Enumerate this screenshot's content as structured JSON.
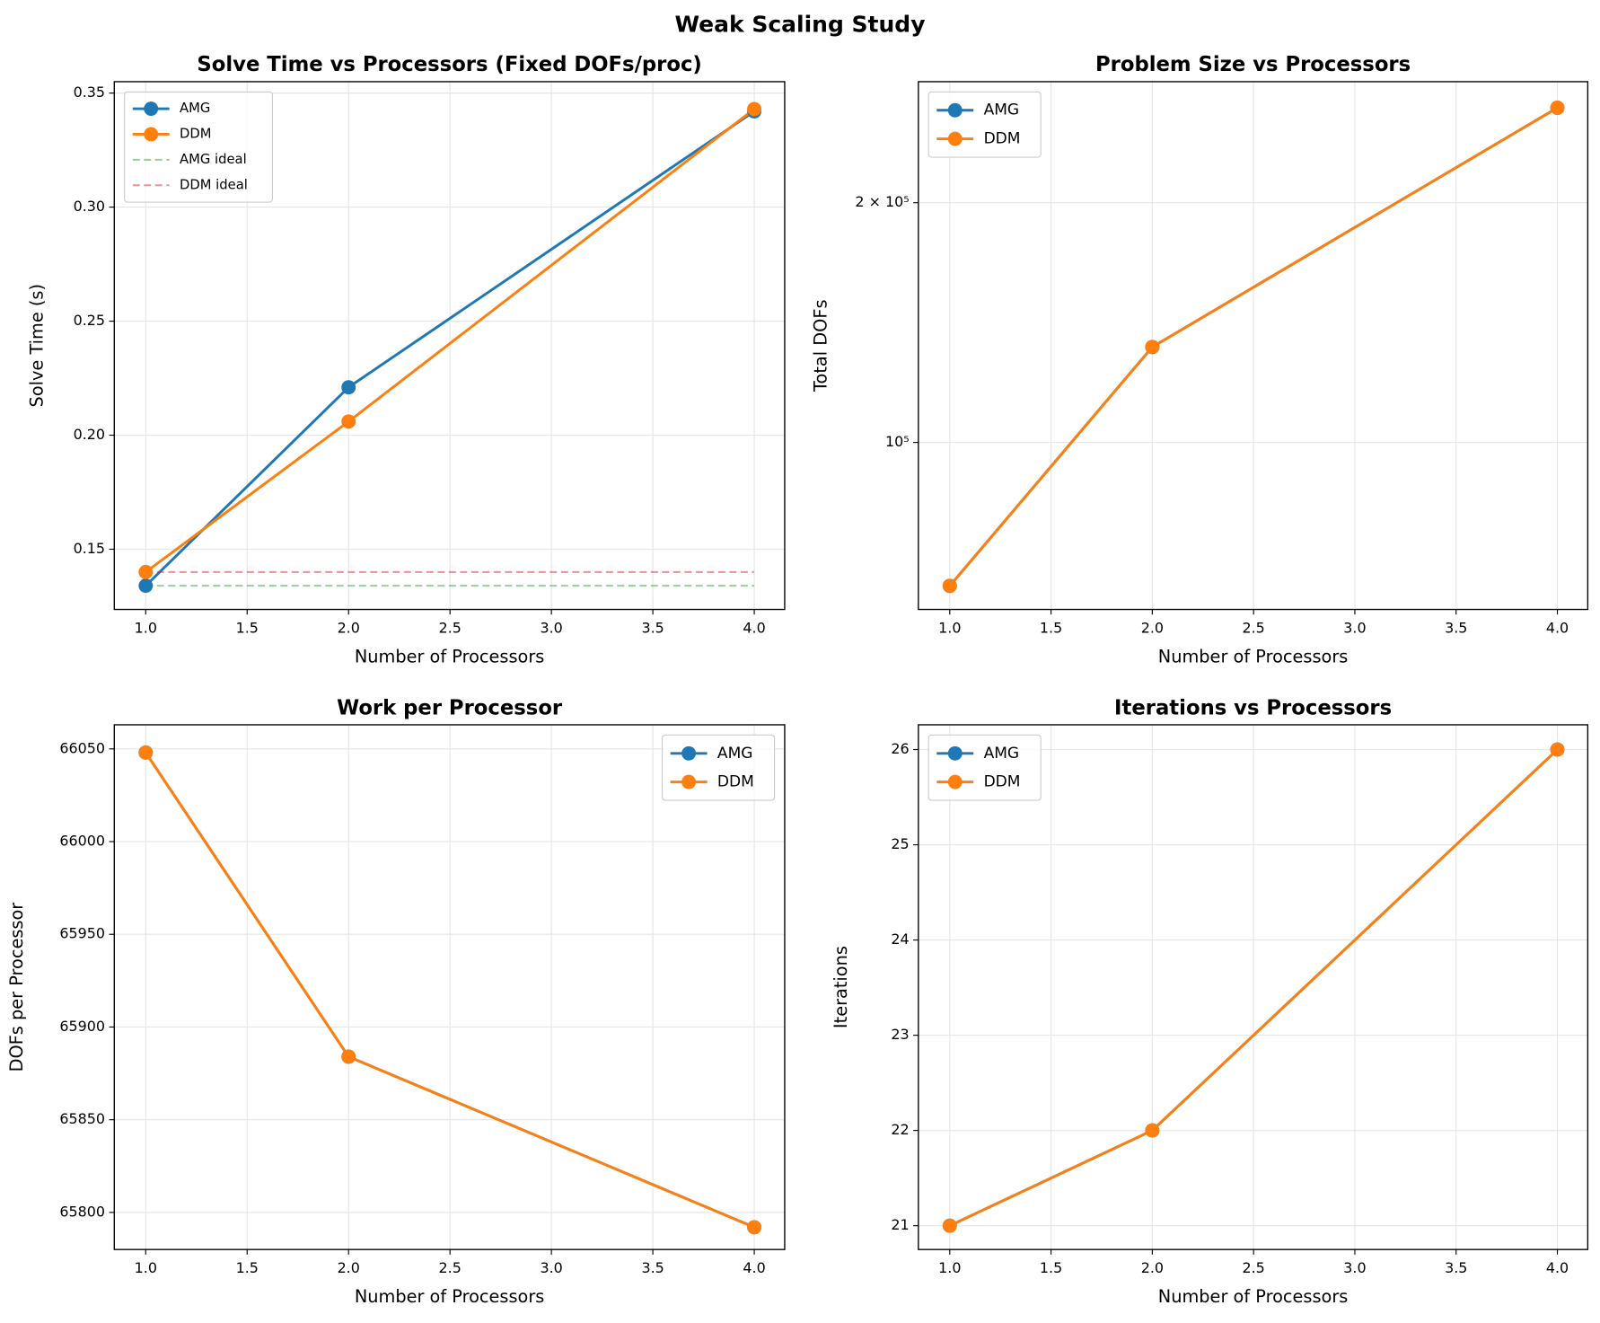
{
  "title": "Weak Scaling Study",
  "chart_data": [
    {
      "type": "line",
      "title": "Solve Time vs Processors (Fixed DOFs/proc)",
      "xlabel": "Number of Processors",
      "ylabel": "Solve Time (s)",
      "x": [
        1,
        2,
        4
      ],
      "series": [
        {
          "name": "AMG",
          "color": "#1f77b4",
          "values": [
            0.134,
            0.221,
            0.342
          ]
        },
        {
          "name": "DDM",
          "color": "#ff7f0e",
          "values": [
            0.14,
            0.206,
            0.343
          ]
        },
        {
          "name": "AMG ideal",
          "color": "#2ca02c",
          "linestyle": "dashed",
          "values": [
            0.134,
            0.134,
            0.134
          ]
        },
        {
          "name": "DDM ideal",
          "color": "#d62728",
          "linestyle": "dashed",
          "values": [
            0.14,
            0.14,
            0.14
          ]
        }
      ],
      "xlim": [
        0.845,
        4.15
      ],
      "ylim": [
        0.1236,
        0.355
      ],
      "xticks": [
        {
          "value": 1,
          "label": "1.0"
        },
        {
          "value": 1.5,
          "label": "1.5"
        },
        {
          "value": 2,
          "label": "2.0"
        },
        {
          "value": 2.5,
          "label": "2.5"
        },
        {
          "value": 3,
          "label": "3.0"
        },
        {
          "value": 3.5,
          "label": "3.5"
        },
        {
          "value": 4,
          "label": "4.0"
        }
      ],
      "yticks": [
        0.15,
        {
          "value": 0.2,
          "label": "0.20"
        },
        0.25,
        {
          "value": 0.3,
          "label": "0.30"
        },
        0.35
      ],
      "grid": true,
      "legend": "upper left"
    },
    {
      "type": "line",
      "title": "Problem Size vs Processors",
      "xlabel": "Number of Processors",
      "ylabel": "Total DOFs",
      "x": [
        1,
        2,
        4
      ],
      "series": [
        {
          "name": "AMG",
          "color": "#1f77b4",
          "values": [
            66048,
            131768,
            263168
          ]
        },
        {
          "name": "DDM",
          "color": "#ff7f0e",
          "values": [
            66048,
            131768,
            263168
          ]
        }
      ],
      "xlim": [
        0.845,
        4.15
      ],
      "ylim": [
        61700,
        283800
      ],
      "yscale": "log",
      "xticks": [
        {
          "value": 1,
          "label": "1.0"
        },
        {
          "value": 1.5,
          "label": "1.5"
        },
        {
          "value": 2,
          "label": "2.0"
        },
        {
          "value": 2.5,
          "label": "2.5"
        },
        {
          "value": 3,
          "label": "3.0"
        },
        {
          "value": 3.5,
          "label": "3.5"
        },
        {
          "value": 4,
          "label": "4.0"
        }
      ],
      "yticks": [
        {
          "value": 100000,
          "label": "10⁵"
        },
        {
          "value": 200000,
          "label": "2 × 10⁵"
        }
      ],
      "grid": true,
      "legend": "upper left"
    },
    {
      "type": "line",
      "title": "Work per Processor",
      "xlabel": "Number of Processors",
      "ylabel": "DOFs per Processor",
      "x": [
        1,
        2,
        4
      ],
      "series": [
        {
          "name": "AMG",
          "color": "#1f77b4",
          "values": [
            66048,
            65884,
            65792
          ]
        },
        {
          "name": "DDM",
          "color": "#ff7f0e",
          "values": [
            66048,
            65884,
            65792
          ]
        }
      ],
      "xlim": [
        0.845,
        4.15
      ],
      "ylim": [
        65780,
        66063
      ],
      "xticks": [
        {
          "value": 1,
          "label": "1.0"
        },
        {
          "value": 1.5,
          "label": "1.5"
        },
        {
          "value": 2,
          "label": "2.0"
        },
        {
          "value": 2.5,
          "label": "2.5"
        },
        {
          "value": 3,
          "label": "3.0"
        },
        {
          "value": 3.5,
          "label": "3.5"
        },
        {
          "value": 4,
          "label": "4.0"
        }
      ],
      "yticks": [
        65800,
        65850,
        65900,
        65950,
        66000,
        66050
      ],
      "grid": true,
      "legend": "upper right"
    },
    {
      "type": "line",
      "title": "Iterations vs Processors",
      "xlabel": "Number of Processors",
      "ylabel": "Iterations",
      "x": [
        1,
        2,
        4
      ],
      "series": [
        {
          "name": "AMG",
          "color": "#1f77b4",
          "values": [
            21,
            22,
            26
          ]
        },
        {
          "name": "DDM",
          "color": "#ff7f0e",
          "values": [
            21,
            22,
            26
          ]
        }
      ],
      "xlim": [
        0.845,
        4.15
      ],
      "ylim": [
        20.75,
        26.26
      ],
      "xticks": [
        {
          "value": 1,
          "label": "1.0"
        },
        {
          "value": 1.5,
          "label": "1.5"
        },
        {
          "value": 2,
          "label": "2.0"
        },
        {
          "value": 2.5,
          "label": "2.5"
        },
        {
          "value": 3,
          "label": "3.0"
        },
        {
          "value": 3.5,
          "label": "3.5"
        },
        {
          "value": 4,
          "label": "4.0"
        }
      ],
      "yticks": [
        21,
        22,
        23,
        24,
        25,
        26
      ],
      "grid": true,
      "legend": "upper left"
    }
  ]
}
